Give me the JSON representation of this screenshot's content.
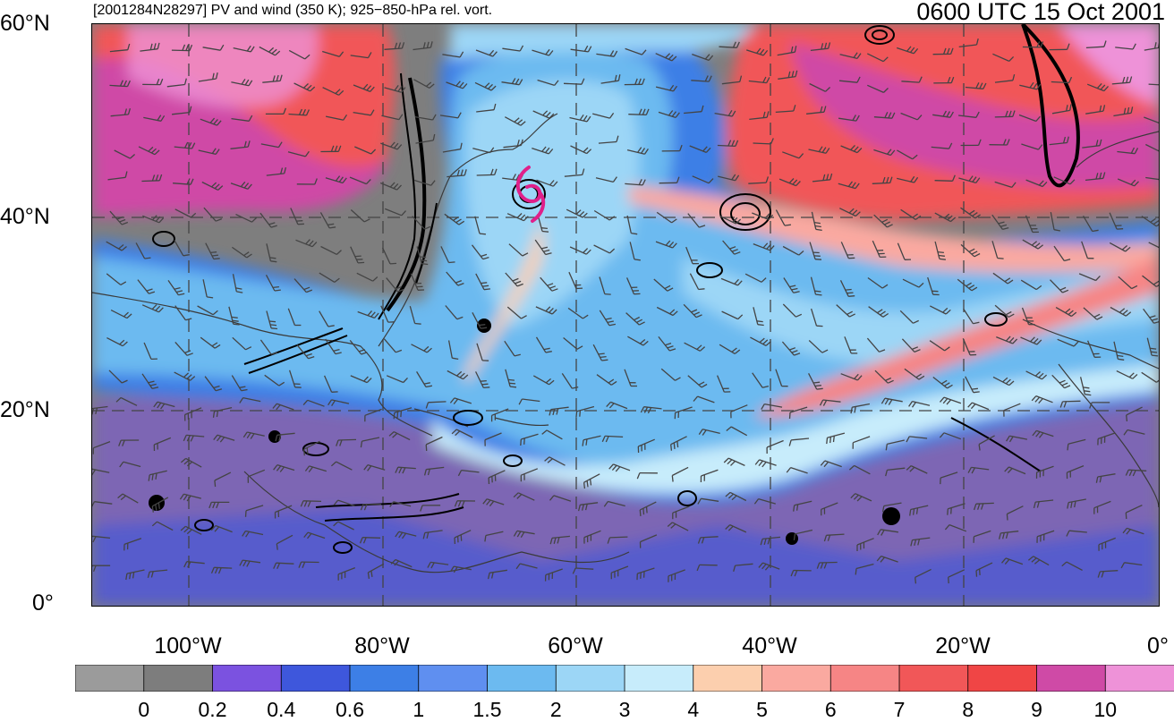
{
  "header": {
    "title_left": "[2001284N28297] PV and wind (350 K); 925−850-hPa rel. vort.",
    "title_right": "0600 UTC 15 Oct 2001"
  },
  "axes": {
    "lat_labels": [
      "60°N",
      "40°N",
      "20°N",
      "0°"
    ],
    "lon_labels": [
      "100°W",
      "80°W",
      "60°W",
      "40°W",
      "20°W",
      "0°"
    ]
  },
  "colorbar": {
    "labels": [
      "0",
      "0.2",
      "0.4",
      "0.6",
      "1",
      "1.5",
      "2",
      "3",
      "4",
      "5",
      "6",
      "7",
      "8",
      "9",
      "10"
    ],
    "colors": [
      "#9b9b9b",
      "#7d7d7d",
      "#7b52e0",
      "#3e57dc",
      "#3d7fe6",
      "#5f8ff0",
      "#6cbaf0",
      "#9cd6f6",
      "#c7ecfb",
      "#fccfae",
      "#faa9a0",
      "#f68585",
      "#f15758",
      "#f04545",
      "#cf4aa6",
      "#ee92d8"
    ]
  },
  "map": {
    "storm_symbol": "hurricane-symbol",
    "storm_color": "#e0208a"
  }
}
